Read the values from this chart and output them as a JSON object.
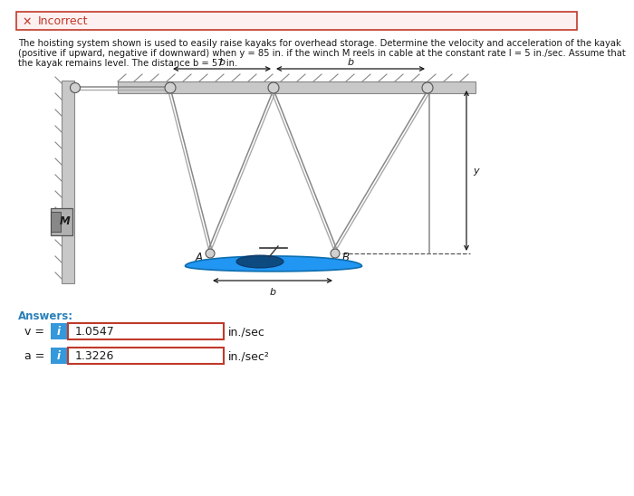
{
  "incorrect_text": "Incorrect",
  "incorrect_bg": "#fdf0f0",
  "incorrect_border": "#c0392b",
  "answers_label": "Answers:",
  "v_label": "v =",
  "v_value": "1.0547",
  "v_unit": "in./sec",
  "a_label": "a =",
  "a_value": "1.3226",
  "a_unit": "in./sec²",
  "box_bg": "#ffffff",
  "box_border": "#c0392b",
  "blue_btn_color": "#3498db",
  "input_border": "#c0392b",
  "text_color": "#2c3e50",
  "answers_color": "#2980b9",
  "fig_bg": "#ffffff",
  "problem_line1": "The hoisting system shown is used to easily raise kayaks for overhead storage. Determine the velocity and acceleration of the kayak",
  "problem_line2": "(positive if upward, negative if downward) when y = 85 in. if the winch M reels in cable at the constant rate l = 5 in./sec. Assume that",
  "problem_line3": "the kayak remains level. The distance b = 57 in."
}
